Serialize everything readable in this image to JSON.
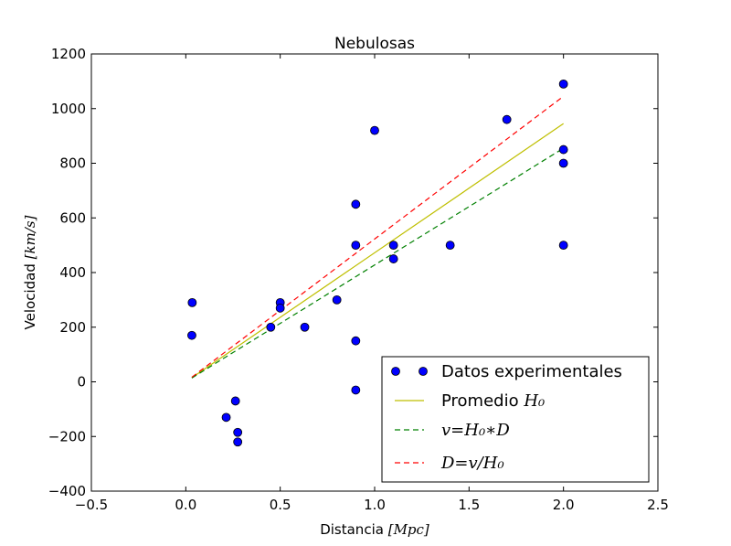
{
  "chart_data": {
    "type": "scatter",
    "title": "Nebulosas",
    "xlabel": "Distancia",
    "xlabel_math": "[Mpc]",
    "ylabel": "Velocidad",
    "ylabel_math": "[km/s]",
    "xlim": [
      -0.5,
      2.5
    ],
    "ylim": [
      -400,
      1200
    ],
    "xticks": [
      -0.5,
      0.0,
      0.5,
      1.0,
      1.5,
      2.0,
      2.5
    ],
    "xtick_labels": [
      "−0.5",
      "0.0",
      "0.5",
      "1.0",
      "1.5",
      "2.0",
      "2.5"
    ],
    "yticks": [
      -400,
      -200,
      0,
      200,
      400,
      600,
      800,
      1000,
      1200
    ],
    "ytick_labels": [
      "−400",
      "−200",
      "0",
      "200",
      "400",
      "600",
      "800",
      "1000",
      "1200"
    ],
    "grid": false,
    "legend_position": "lower-right",
    "series": [
      {
        "name": "Datos experimentales",
        "kind": "points",
        "color": "#0000ff",
        "x": [
          0.032,
          0.034,
          0.214,
          0.263,
          0.275,
          0.275,
          0.45,
          0.5,
          0.5,
          0.63,
          0.8,
          0.9,
          0.9,
          0.9,
          0.9,
          1.0,
          1.1,
          1.1,
          1.4,
          1.7,
          2.0,
          2.0,
          2.0,
          2.0
        ],
        "y": [
          170,
          290,
          -130,
          -70,
          -185,
          -220,
          200,
          290,
          270,
          200,
          300,
          -30,
          650,
          150,
          500,
          920,
          450,
          500,
          500,
          960,
          500,
          850,
          800,
          1090
        ]
      },
      {
        "name": "Promedio ",
        "name_math": "H₀",
        "kind": "line",
        "dash": "solid",
        "color": "#bfbf00",
        "x": [
          0.032,
          2.0
        ],
        "y": [
          15,
          945
        ]
      },
      {
        "name_math": "v=H₀∗D",
        "kind": "line",
        "dash": "dashed",
        "color": "#008000",
        "x": [
          0.032,
          2.0
        ],
        "y": [
          14,
          855
        ]
      },
      {
        "name_math": "D=v/H₀",
        "kind": "line",
        "dash": "dashed",
        "color": "#ff0000",
        "x": [
          0.032,
          2.0
        ],
        "y": [
          17,
          1045
        ]
      }
    ]
  }
}
